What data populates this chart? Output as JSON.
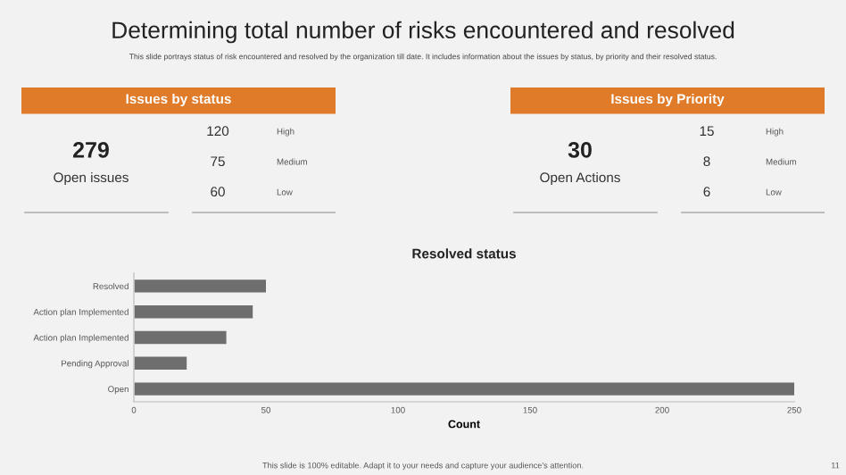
{
  "chart_data": [
    {
      "type": "other",
      "title": "Determining total number of risks encountered and resolved",
      "subtitle": "This slide portrays status of risk encountered and resolved by the organization till date. It includes information about the issues by status, by priority and their resolved status.",
      "annotations": [
        "This slide is 100% editable. Adapt it to your needs and capture your audience's attention.",
        "11"
      ]
    },
    {
      "type": "other",
      "title": "Issues by status",
      "color": "#e07b2a",
      "annotations": [
        "279",
        "Open issues",
        "120",
        "High",
        "75",
        "Medium",
        "60",
        "Low"
      ]
    },
    {
      "type": "other",
      "title": "Issues by Priority",
      "color": "#e07b2a",
      "annotations": [
        "30",
        "Open Actions",
        "15",
        "High",
        "8",
        "Medium",
        "6",
        "Low"
      ]
    },
    {
      "type": "bar",
      "orientation": "horizontal",
      "title": "Resolved status",
      "xlabel": "Count",
      "categories": [
        "Resolved",
        "Action plan Implemented",
        "Action plan Implemented",
        "Pending Approval",
        "Open"
      ],
      "values": [
        50,
        45,
        35,
        20,
        250
      ],
      "color": "#6e6e6e",
      "xlim": [
        0,
        250
      ],
      "xticks": [
        0,
        50,
        100,
        150,
        200,
        250
      ],
      "grid": false
    }
  ]
}
